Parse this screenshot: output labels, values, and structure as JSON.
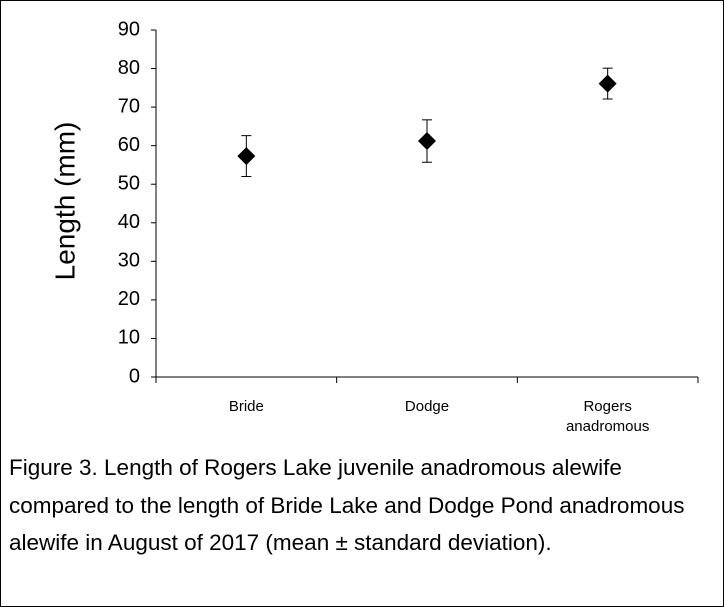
{
  "chart_data": {
    "type": "scatter",
    "y_axis_label": "Length (mm)",
    "categories": [
      "Bride",
      "Dodge",
      "Rogers anadromous"
    ],
    "values": [
      57.3,
      61.2,
      76.1
    ],
    "errors": [
      5.3,
      5.5,
      4.0
    ],
    "color": "#000000",
    "ylim": [
      0,
      90
    ],
    "yticks": [
      0,
      10,
      20,
      30,
      40,
      50,
      60,
      70,
      80,
      90
    ],
    "grid": false,
    "caption": "Figure 3. Length of Rogers Lake juvenile anadromous alewife compared to the length of Bride Lake and Dodge Pond anadromous alewife in August of 2017 (mean ± standard deviation)."
  }
}
